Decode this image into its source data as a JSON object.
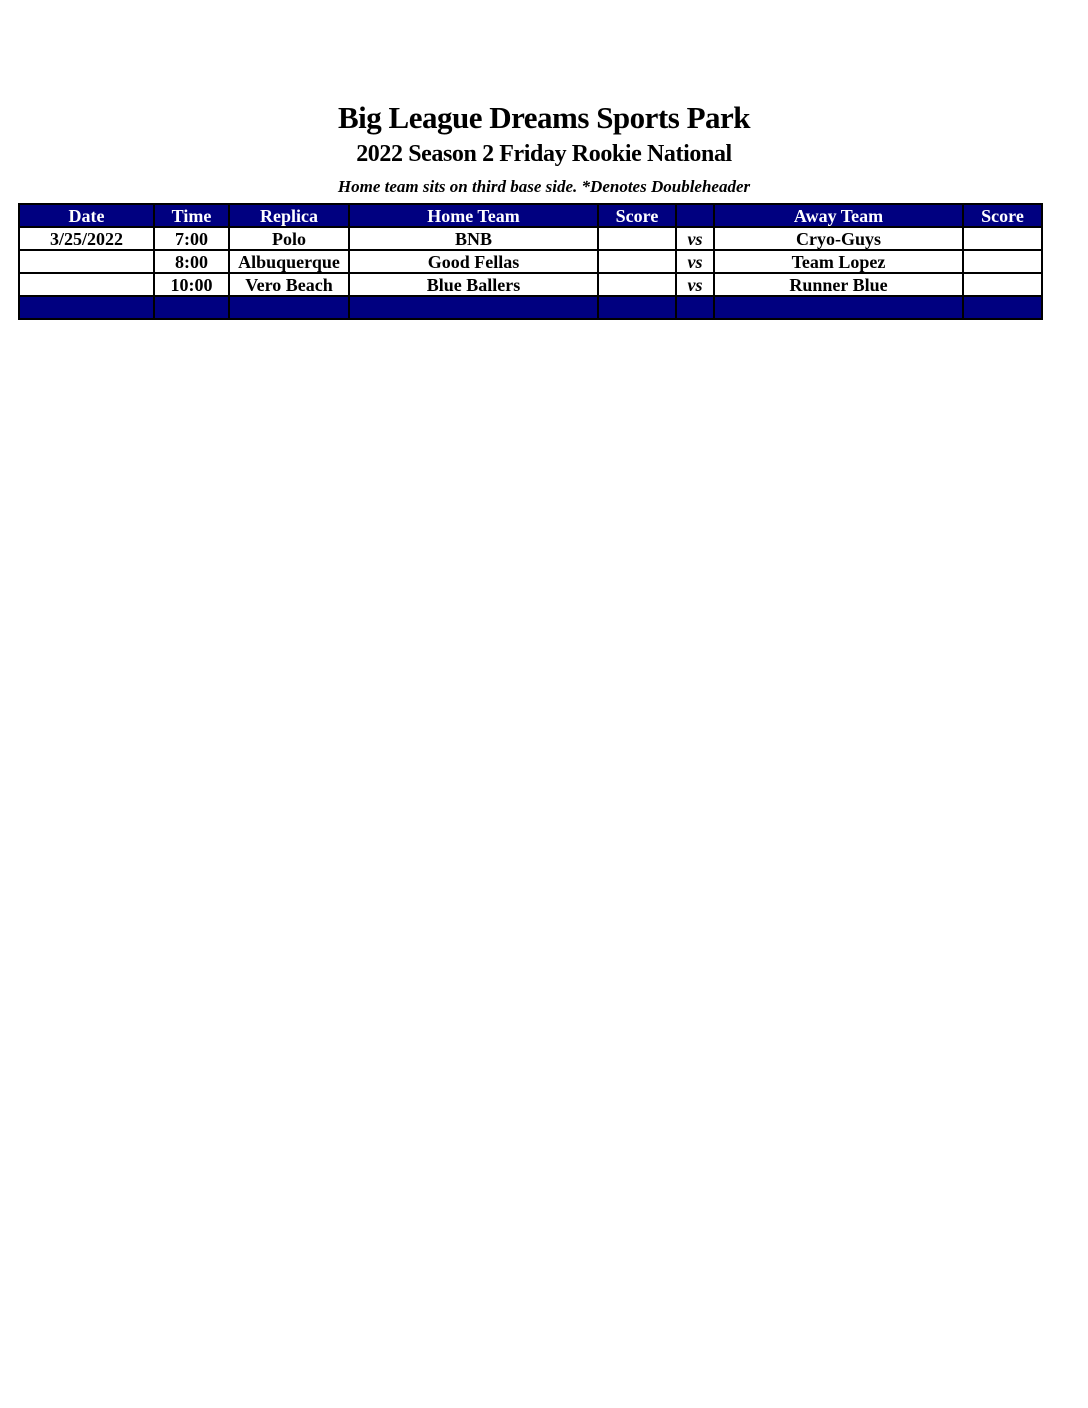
{
  "title": "Big League Dreams Sports Park",
  "subtitle": "2022 Season 2 Friday Rookie National",
  "note": "Home team sits on third base side.  *Denotes Doubleheader",
  "columns": [
    "Date",
    "Time",
    "Replica",
    "Home Team",
    "Score",
    "",
    "Away Team",
    "Score"
  ],
  "rows": [
    {
      "date": "3/25/2022",
      "time": "7:00",
      "replica": "Polo",
      "home": "BNB",
      "home_score": "",
      "vs": "vs",
      "away": "Cryo-Guys",
      "away_score": ""
    },
    {
      "date": "",
      "time": "8:00",
      "replica": "Albuquerque",
      "home": "Good Fellas",
      "home_score": "",
      "vs": "vs",
      "away": "Team Lopez",
      "away_score": ""
    },
    {
      "date": "",
      "time": "10:00",
      "replica": "Vero Beach",
      "home": "Blue Ballers",
      "home_score": "",
      "vs": "vs",
      "away": "Runner Blue",
      "away_score": ""
    }
  ],
  "colors": {
    "header": "#000080"
  }
}
